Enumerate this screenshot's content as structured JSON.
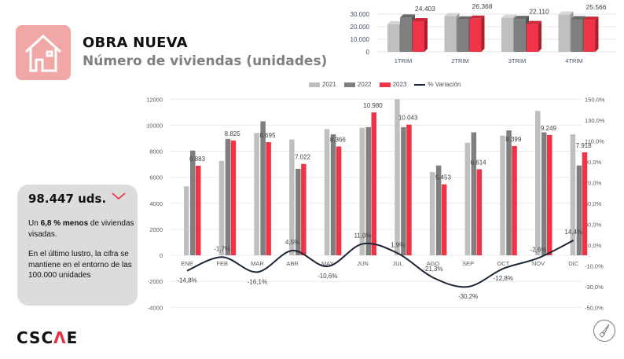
{
  "header": {
    "title": "OBRA NUEVA",
    "subtitle": "Número de viviendas (unidades)",
    "icon": "house-icon"
  },
  "summary_card": {
    "total": "98.447 uds.",
    "trend_icon": "chevron-down-icon",
    "line1_pre": "Un ",
    "line1_bold": "6,8 % menos",
    "line1_post": " de viviendas visadas.",
    "line2": "En el último lustro, la cifra se mantiene en el entorno de las 100.000 unidades"
  },
  "logo": {
    "text_pre": "CSC",
    "text_mark": "Λ",
    "text_post": "E"
  },
  "footer_icon": "compass-icon",
  "colors": {
    "y2021": "#bfbfbf",
    "y2022": "#7f7f7f",
    "y2023": "#ee3446",
    "variation": "#1d2636",
    "accent": "#e8323f"
  },
  "chart_data": [
    {
      "type": "bar",
      "style": "3d-clustered",
      "categories": [
        "1TRIM",
        "2TRIM",
        "3TRIM",
        "4TRIM"
      ],
      "series": [
        {
          "name": "2021",
          "values": [
            21950,
            28400,
            27050,
            29600
          ]
        },
        {
          "name": "2022",
          "values": [
            27300,
            25800,
            26200,
            25950
          ]
        },
        {
          "name": "2023",
          "values": [
            24403,
            26368,
            22110,
            25566
          ]
        }
      ],
      "data_labels": [
        "24.403",
        "26.368",
        "22.110",
        "25.566"
      ],
      "yticks": [
        "0",
        "10.000",
        "20.000",
        "30.000"
      ],
      "ylim": [
        0,
        30000
      ],
      "grid": true
    },
    {
      "type": "bar+line",
      "categories": [
        "ENE",
        "FEB",
        "MAR",
        "ABR",
        "MAY",
        "JUN",
        "JUL",
        "AGO",
        "SEP",
        "OCT",
        "NOV",
        "DIC"
      ],
      "legend": [
        "2021",
        "2022",
        "2023",
        "% Variación"
      ],
      "legend_position": "top",
      "series": [
        {
          "name": "2021",
          "values": [
            5300,
            7250,
            9400,
            8900,
            9700,
            9800,
            12000,
            6400,
            8650,
            9200,
            11100,
            9300
          ]
        },
        {
          "name": "2022",
          "values": [
            8050,
            8950,
            10300,
            6650,
            9300,
            9850,
            9850,
            6900,
            9450,
            9600,
            9450,
            6900
          ]
        },
        {
          "name": "2023",
          "values": [
            6883,
            8825,
            8695,
            7022,
            8366,
            10980,
            10043,
            5453,
            6614,
            8399,
            9249,
            7918
          ]
        },
        {
          "name": "% Variación",
          "axis": "right",
          "values": [
            -14.8,
            -1.7,
            -16.1,
            4.5,
            -10.6,
            11.0,
            1.9,
            -21.3,
            -30.2,
            -12.8,
            -2.6,
            14.4
          ]
        }
      ],
      "bar_labels": [
        "6.883",
        "8.825",
        "8.695",
        "7.022",
        "8.366",
        "10.980",
        "10.043",
        "5.453",
        "6.614",
        "8.399",
        "9.249",
        "7.918"
      ],
      "line_labels": [
        "-14,8%",
        "-1,7%",
        "-16,1%",
        "4,5%",
        "-10,6%",
        "11,0%",
        "1,9%",
        "-21,3%",
        "-30,2%",
        "-12,8%",
        "-2,6%",
        "14,4%"
      ],
      "yticks_left": [
        "-4000",
        "-2000",
        "0",
        "2000",
        "4000",
        "6000",
        "8000",
        "10000",
        "12000"
      ],
      "yticks_right": [
        "-50,0%",
        "-30,0%",
        "-10,0%",
        "10,0%",
        "30,0%",
        "50,0%",
        "70,0%",
        "90,0%",
        "110,0%",
        "130,0%",
        "150,0%"
      ],
      "ylim_left": [
        -4000,
        12000
      ],
      "ylim_right": [
        -50,
        150
      ],
      "grid": true
    }
  ]
}
